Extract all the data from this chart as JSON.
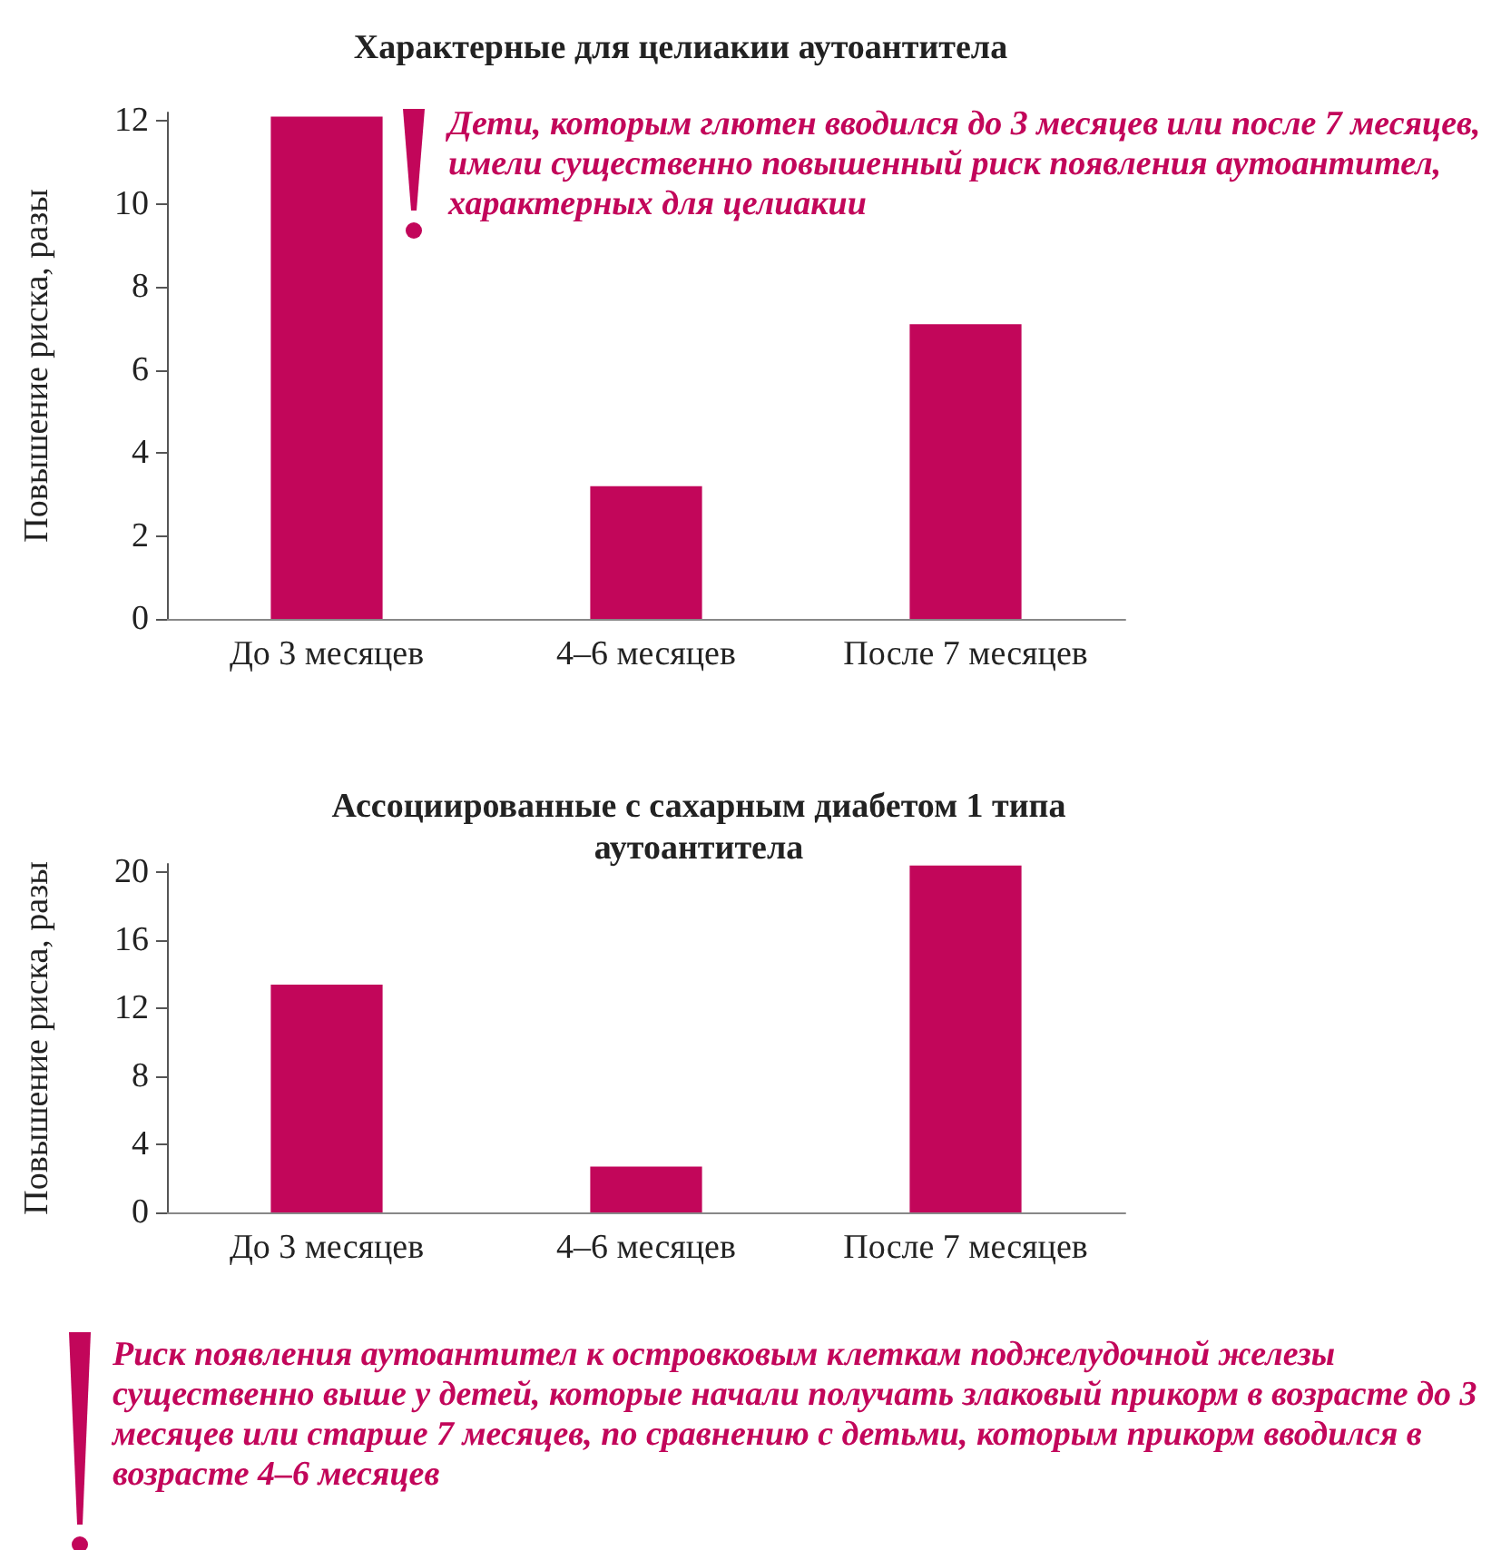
{
  "chart_data": [
    {
      "type": "bar",
      "title": "Характерные для целиакии аутоантитела",
      "ylabel": "Повышение риска, разы",
      "categories": [
        "До 3 месяцев",
        "4–6 месяцев",
        "После 7 месяцев"
      ],
      "values": [
        12.1,
        3.2,
        7.1
      ],
      "color": "#c2065a",
      "ylim": [
        0,
        12.2
      ],
      "yticks": [
        0,
        2,
        4,
        6,
        8,
        10,
        12
      ],
      "grid": false,
      "annotations": [
        "Дети, которым глютен вводился до 3 месяцев или после 7 месяцев, имели существенно повышенный риск появления аутоантител, характерных для целиакии"
      ]
    },
    {
      "type": "bar",
      "title": "Ассоциированные с сахарным диабетом 1 типа\nаутоантитела",
      "ylabel": "Повышение риска, разы",
      "categories": [
        "До 3 месяцев",
        "4–6 месяцев",
        "После 7 месяцев"
      ],
      "values": [
        13.4,
        2.7,
        20.4
      ],
      "color": "#c2065a",
      "ylim": [
        0,
        20.5
      ],
      "yticks": [
        0,
        4,
        8,
        12,
        16,
        20
      ],
      "grid": false,
      "annotations": [
        "Риск появления аутоантител к островковым клеткам поджелудочной железы существенно выше у детей, которые начали получать злаковый прикорм в возрасте до 3 месяцев или старше 7 месяцев, по сравнению с детьми, которым прикорм вводился в возрасте 4–6 месяцев"
      ]
    }
  ]
}
